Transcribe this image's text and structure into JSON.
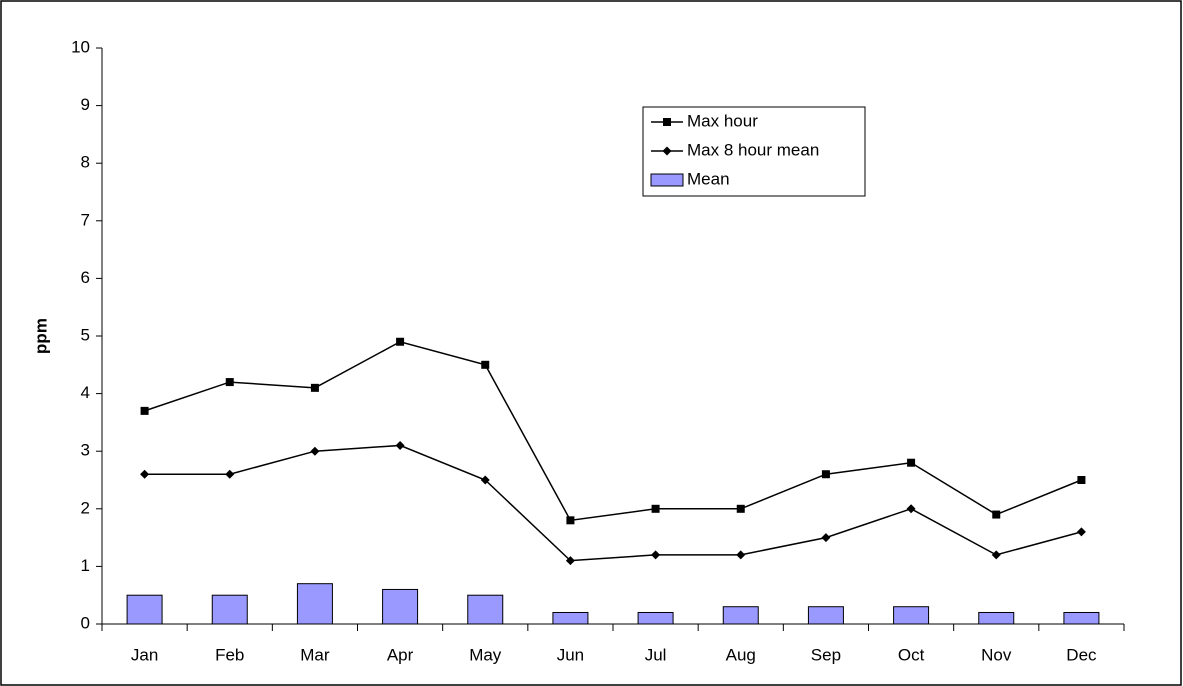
{
  "chart_data": {
    "type": "combo",
    "ylabel": "ppm",
    "categories": [
      "Jan",
      "Feb",
      "Mar",
      "Apr",
      "May",
      "Jun",
      "Jul",
      "Aug",
      "Sep",
      "Oct",
      "Nov",
      "Dec"
    ],
    "series": [
      {
        "name": "Max hour",
        "type": "line",
        "marker": "square",
        "color": "#000000",
        "values": [
          3.7,
          4.2,
          4.1,
          4.9,
          4.5,
          1.8,
          2.0,
          2.0,
          2.6,
          2.8,
          1.9,
          2.5
        ]
      },
      {
        "name": "Max 8 hour mean",
        "type": "line",
        "marker": "diamond",
        "color": "#000000",
        "values": [
          2.6,
          2.6,
          3.0,
          3.1,
          2.5,
          1.1,
          1.2,
          1.2,
          1.5,
          2.0,
          1.2,
          1.6
        ]
      },
      {
        "name": "Mean",
        "type": "bar",
        "color": "#9999ff",
        "values": [
          0.5,
          0.5,
          0.7,
          0.6,
          0.5,
          0.2,
          0.2,
          0.3,
          0.3,
          0.3,
          0.2,
          0.2
        ]
      }
    ],
    "ylim": [
      0,
      10
    ],
    "yticks": [
      0,
      1,
      2,
      3,
      4,
      5,
      6,
      7,
      8,
      9,
      10
    ],
    "grid": false
  }
}
